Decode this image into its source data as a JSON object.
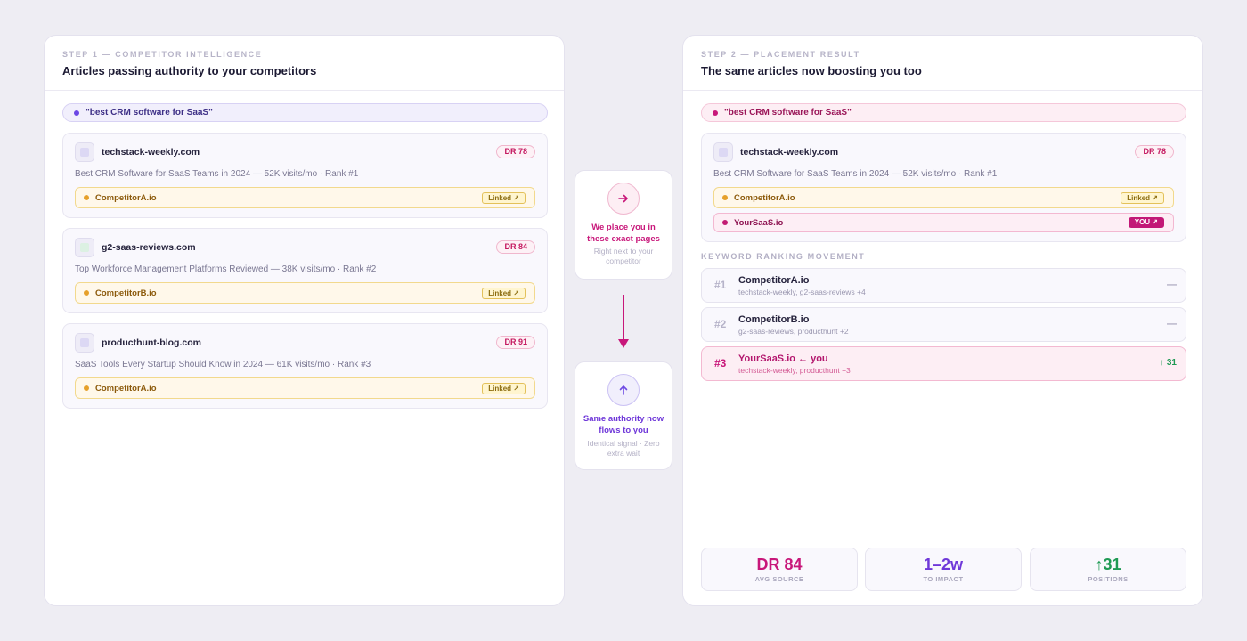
{
  "step1": {
    "label": "STEP 1 — COMPETITOR INTELLIGENCE",
    "title": "Articles passing authority to your competitors",
    "keyword": "\"best CRM software for SaaS\"",
    "articles": [
      {
        "domain": "techstack-weekly.com",
        "dr": "DR 78",
        "desc": "Best CRM Software for SaaS Teams in 2024 — 52K visits/mo · Rank #1",
        "competitor": "CompetitorA.io",
        "badge": "Linked ↗"
      },
      {
        "domain": "g2-saas-reviews.com",
        "dr": "DR 84",
        "desc": "Top Workforce Management Platforms Reviewed — 38K visits/mo · Rank #2",
        "competitor": "CompetitorB.io",
        "badge": "Linked ↗"
      },
      {
        "domain": "producthunt-blog.com",
        "dr": "DR 91",
        "desc": "SaaS Tools Every Startup Should Know in 2024 — 61K visits/mo · Rank #3",
        "competitor": "CompetitorA.io",
        "badge": "Linked ↗"
      }
    ]
  },
  "middle": {
    "place": {
      "icon": "arrow-right-icon",
      "title": "We place you in these exact pages",
      "sub": "Right next to your competitor"
    },
    "flow": {
      "icon": "arrow-up-icon",
      "title": "Same authority now flows to you",
      "sub": "Identical signal · Zero extra wait"
    }
  },
  "step2": {
    "label": "STEP 2 — PLACEMENT RESULT",
    "title": "The same articles now boosting you too",
    "keyword": "\"best CRM software for SaaS\"",
    "article": {
      "domain": "techstack-weekly.com",
      "dr": "DR 78",
      "desc": "Best CRM Software for SaaS Teams in 2024 — 52K visits/mo · Rank #1",
      "competitor": "CompetitorA.io",
      "competitor_badge": "Linked ↗",
      "you": "YourSaaS.io",
      "you_badge": "YOU ↗"
    },
    "ranking_label": "KEYWORD RANKING MOVEMENT",
    "rankings": [
      {
        "rank": "#1",
        "name": "CompetitorA.io",
        "sources": "techstack-weekly, g2-saas-reviews +4",
        "change": "—"
      },
      {
        "rank": "#2",
        "name": "CompetitorB.io",
        "sources": "g2-saas-reviews, producthunt +2",
        "change": "—"
      },
      {
        "rank": "#3",
        "name": "YourSaaS.io ← you",
        "sources": "techstack-weekly, producthunt +3",
        "change": "↑ 31"
      }
    ],
    "stats": [
      {
        "value": "DR 84",
        "label": "AVG SOURCE",
        "color": "#c8177a"
      },
      {
        "value": "1–2w",
        "label": "TO IMPACT",
        "color": "#6f38d9"
      },
      {
        "value": "↑31",
        "label": "POSITIONS",
        "color": "#1f9a54"
      }
    ]
  }
}
